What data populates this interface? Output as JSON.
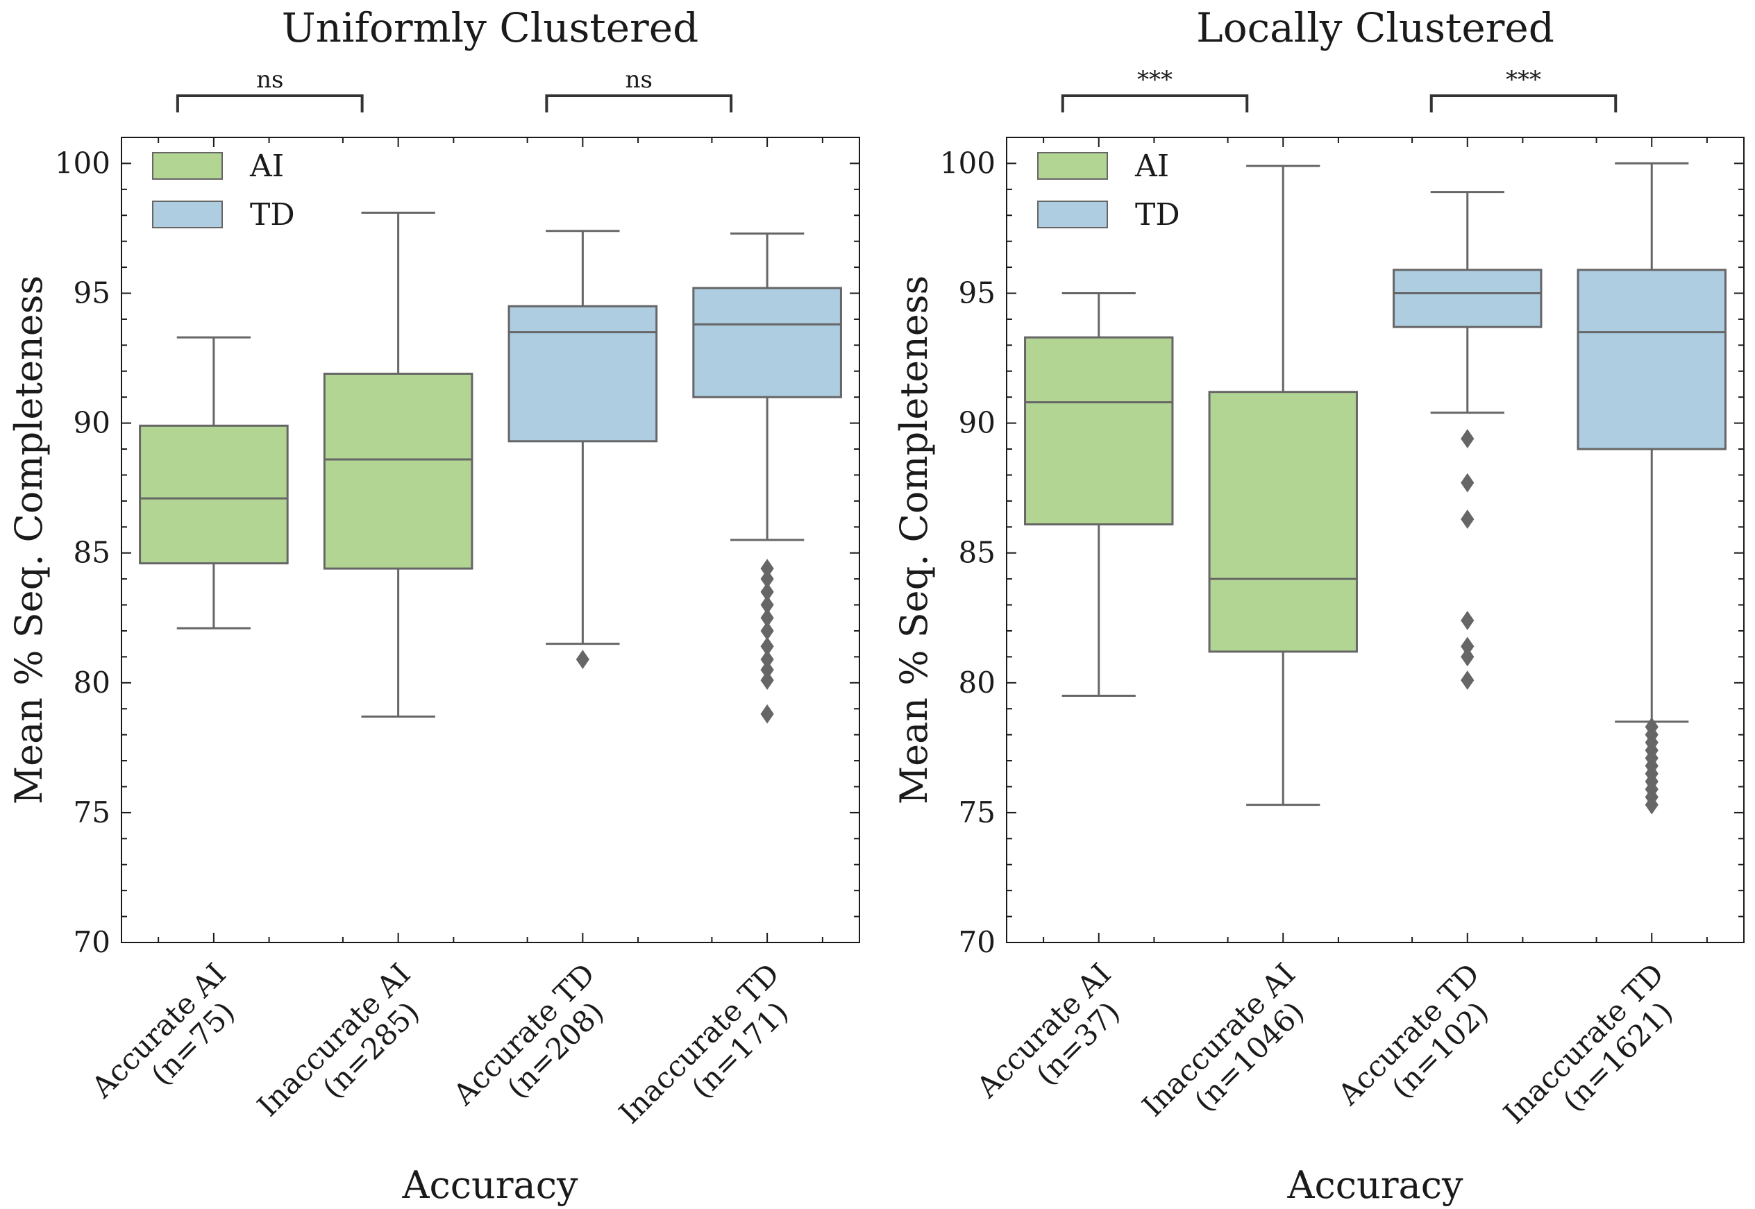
{
  "colors": {
    "AI": "#b3d594",
    "TD": "#aecde1",
    "edge": "#666666",
    "axis": "#1a1a1a",
    "bracket": "#333333"
  },
  "chart_data": [
    {
      "type": "box",
      "title": "Uniformly Clustered",
      "xlabel": "Accuracy",
      "ylabel": "Mean % Seq. Completeness",
      "ylim": [
        70,
        101
      ],
      "yticks": [
        70,
        75,
        80,
        85,
        90,
        95,
        100
      ],
      "legend": {
        "position": "top-left",
        "entries": [
          {
            "label": "AI",
            "group": "AI"
          },
          {
            "label": "TD",
            "group": "TD"
          }
        ]
      },
      "categories": [
        {
          "label": "Accurate AI",
          "n": "(n=75)",
          "group": "AI",
          "whisker_low": 82.1,
          "q1": 84.6,
          "median": 87.1,
          "q3": 89.9,
          "whisker_high": 93.3,
          "outliers": []
        },
        {
          "label": "Inaccurate AI",
          "n": "(n=285)",
          "group": "AI",
          "whisker_low": 78.7,
          "q1": 84.4,
          "median": 88.6,
          "q3": 91.9,
          "whisker_high": 98.1,
          "outliers": []
        },
        {
          "label": "Accurate TD",
          "n": "(n=208)",
          "group": "TD",
          "whisker_low": 81.5,
          "q1": 89.3,
          "median": 93.5,
          "q3": 94.5,
          "whisker_high": 97.4,
          "outliers": [
            80.9
          ]
        },
        {
          "label": "Inaccurate TD",
          "n": "(n=171)",
          "group": "TD",
          "whisker_low": 85.5,
          "q1": 91.0,
          "median": 93.8,
          "q3": 95.2,
          "whisker_high": 97.3,
          "outliers": [
            84.4,
            84.0,
            83.5,
            83.0,
            82.5,
            82.0,
            81.4,
            80.9,
            80.5,
            80.1,
            78.8
          ]
        }
      ],
      "significance": [
        {
          "from": 0,
          "to": 1,
          "label": "ns"
        },
        {
          "from": 2,
          "to": 3,
          "label": "ns"
        }
      ]
    },
    {
      "type": "box",
      "title": "Locally Clustered",
      "xlabel": "Accuracy",
      "ylabel": "Mean % Seq. Completeness",
      "ylim": [
        70,
        101
      ],
      "yticks": [
        70,
        75,
        80,
        85,
        90,
        95,
        100
      ],
      "legend": {
        "position": "top-left",
        "entries": [
          {
            "label": "AI",
            "group": "AI"
          },
          {
            "label": "TD",
            "group": "TD"
          }
        ]
      },
      "categories": [
        {
          "label": "Accurate AI",
          "n": "(n=37)",
          "group": "AI",
          "whisker_low": 79.5,
          "q1": 86.1,
          "median": 90.8,
          "q3": 93.3,
          "whisker_high": 95.0,
          "outliers": []
        },
        {
          "label": "Inaccurate AI",
          "n": "(n=1046)",
          "group": "AI",
          "whisker_low": 75.3,
          "q1": 81.2,
          "median": 84.0,
          "q3": 91.2,
          "whisker_high": 99.9,
          "outliers": []
        },
        {
          "label": "Accurate TD",
          "n": "(n=102)",
          "group": "TD",
          "whisker_low": 90.4,
          "q1": 93.7,
          "median": 95.0,
          "q3": 95.9,
          "whisker_high": 98.9,
          "outliers": [
            89.4,
            87.7,
            86.3,
            82.4,
            81.4,
            81.0,
            80.1
          ]
        },
        {
          "label": "Inaccurate TD",
          "n": "(n=1621)",
          "group": "TD",
          "whisker_low": 78.5,
          "q1": 89.0,
          "median": 93.5,
          "q3": 95.9,
          "whisker_high": 100.0,
          "outliers": [
            78.3,
            78.0,
            77.7,
            77.4,
            77.1,
            76.8,
            76.5,
            76.2,
            75.9,
            75.6,
            75.3
          ]
        }
      ],
      "significance": [
        {
          "from": 0,
          "to": 1,
          "label": "***"
        },
        {
          "from": 2,
          "to": 3,
          "label": "***"
        }
      ]
    }
  ]
}
